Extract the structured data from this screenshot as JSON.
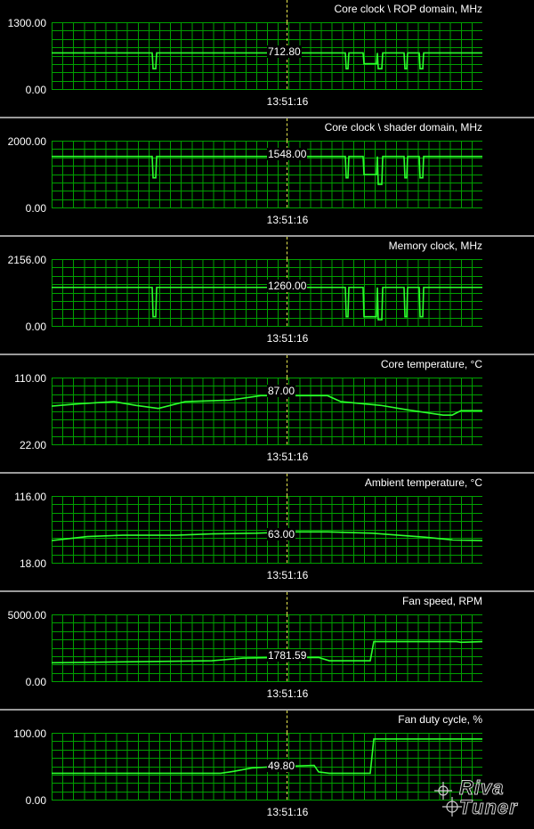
{
  "cursor_time": "13:51:16",
  "colors": {
    "background": "#000000",
    "grid": "#00a000",
    "trace": "#2cff2c",
    "cursor": "#e8e850",
    "separator": "#9a9a9a"
  },
  "watermark": {
    "line1": "Riva",
    "line2": "Tuner"
  },
  "panels": [
    {
      "id": "rop",
      "title": "Core clock \\ ROP domain, MHz",
      "y_max": "1300.00",
      "y_min": "0.00",
      "current": "712.80",
      "range": [
        0,
        1300
      ],
      "values": [
        712,
        712,
        712,
        712,
        712,
        712,
        712,
        712,
        712,
        712,
        712,
        712,
        712,
        712,
        712,
        712,
        712,
        712,
        712,
        712,
        712,
        712,
        712,
        712,
        712,
        712,
        712,
        712,
        712,
        712,
        712,
        712,
        712,
        712,
        712,
        712,
        712,
        712,
        712,
        712,
        712,
        712,
        712,
        712,
        712,
        712,
        712,
        712,
        712,
        712,
        712,
        712,
        712,
        712,
        712,
        712,
        712,
        712,
        712,
        712,
        712,
        712,
        712,
        712,
        712,
        712,
        712,
        712,
        712,
        712,
        712,
        712,
        712,
        712,
        712,
        712,
        712,
        712,
        712,
        712,
        712,
        712,
        712,
        712,
        712,
        712,
        712,
        712,
        712,
        712,
        712,
        712,
        712,
        712,
        712,
        712,
        712,
        712,
        712,
        712,
        712,
        712,
        712,
        712,
        712,
        712,
        712,
        712,
        712,
        712,
        712,
        712,
        712,
        712,
        712,
        712,
        712,
        712,
        712,
        712,
        712,
        712,
        712,
        712,
        712,
        712,
        712,
        712,
        712,
        712,
        712,
        712,
        712,
        712,
        712,
        712,
        712,
        712,
        712,
        712,
        712,
        712,
        712,
        712,
        712,
        712,
        712,
        712,
        712,
        712,
        712,
        712,
        712,
        712,
        712,
        712,
        712,
        712,
        712,
        712,
        712,
        712,
        712,
        712,
        712,
        712,
        712,
        712,
        712,
        712,
        712,
        712,
        712,
        712,
        712,
        712,
        712,
        712,
        712,
        712,
        712,
        712,
        712,
        712,
        712,
        712,
        712,
        712,
        712,
        712,
        712,
        712,
        712,
        712,
        712,
        712,
        712,
        712,
        712,
        712,
        712,
        712,
        712,
        712,
        712,
        712,
        712,
        712,
        712,
        712,
        712,
        712,
        712,
        712,
        712,
        712,
        712,
        712,
        712,
        712,
        712,
        712,
        712,
        712,
        712,
        712,
        712,
        712,
        712,
        712,
        712,
        712,
        712,
        712,
        712,
        712,
        712,
        712,
        712,
        712,
        712,
        712,
        712,
        712,
        712,
        712,
        712,
        712,
        712,
        712,
        712,
        712,
        712,
        712,
        712,
        712,
        712,
        712,
        712,
        712,
        712,
        712,
        712,
        712,
        712,
        712,
        712,
        712,
        712,
        712,
        712,
        712,
        712,
        712,
        712,
        712,
        712,
        712,
        712,
        712,
        712,
        712,
        712,
        712,
        712,
        712,
        712,
        712,
        712,
        712,
        712,
        712,
        712,
        712,
        712,
        712,
        712,
        712,
        712,
        712,
        712,
        712,
        712,
        712,
        712,
        712,
        712,
        712,
        712,
        712,
        712,
        712,
        712,
        712,
        712,
        712,
        712,
        712,
        712,
        712,
        712,
        712,
        712,
        712,
        712,
        712,
        712,
        712,
        712,
        712,
        712,
        712,
        712,
        712,
        712,
        712,
        712,
        712,
        712,
        712,
        712,
        712,
        712,
        712,
        712,
        712,
        712,
        712,
        712,
        712,
        712,
        712,
        712,
        712,
        712,
        712,
        712,
        712,
        712,
        712,
        712,
        712,
        712,
        712,
        712,
        712,
        712,
        712,
        712,
        712,
        712,
        712,
        712,
        712,
        712,
        712,
        712,
        712,
        712,
        712,
        712,
        712,
        712,
        712,
        712,
        712,
        712,
        712,
        712,
        712,
        712,
        712,
        712,
        712,
        712,
        712,
        712,
        712,
        712,
        712,
        712,
        712,
        712,
        712,
        712,
        712,
        712,
        712,
        712,
        712,
        712,
        712,
        712,
        712,
        712,
        712,
        712,
        712,
        712,
        712,
        712,
        712,
        712,
        712,
        712,
        712,
        712,
        712,
        712,
        712,
        712,
        712,
        712,
        712,
        712,
        712,
        712,
        712,
        712,
        712,
        712,
        712,
        712,
        712,
        712,
        712,
        712,
        712,
        712,
        712,
        712,
        712,
        712,
        712,
        712,
        712,
        712,
        712,
        712,
        712,
        712,
        712,
        712,
        712,
        712,
        712,
        712,
        712,
        712,
        712,
        712,
        712,
        712,
        712,
        712,
        712,
        712,
        712,
        712,
        712,
        712,
        712,
        712,
        712,
        712,
        712,
        712,
        712,
        712,
        712,
        712,
        712,
        712,
        712,
        712,
        712,
        712,
        712,
        712,
        712,
        712,
        712,
        712,
        712,
        712
      ],
      "dips": [
        [
          113,
          118,
          400
        ],
        [
          330,
          334,
          400
        ],
        [
          336,
          346,
          712
        ],
        [
          350,
          366,
          500
        ],
        [
          366,
          372,
          400
        ],
        [
          372,
          396,
          712
        ],
        [
          396,
          400,
          400
        ],
        [
          413,
          418,
          400
        ]
      ],
      "steps": [
        [
          334,
          346,
          712
        ],
        [
          346,
          350,
          712
        ]
      ],
      "base": 712,
      "high": 712,
      "trace_mode": "step"
    },
    {
      "id": "shader",
      "title": "Core clock \\ shader domain, MHz",
      "y_max": "2000.00",
      "y_min": "0.00",
      "current": "1548.00",
      "range": [
        0,
        2000
      ],
      "base": 1548,
      "trace_mode": "step",
      "dips": [
        [
          113,
          118,
          900
        ],
        [
          330,
          334,
          900
        ],
        [
          350,
          366,
          1000
        ],
        [
          366,
          372,
          700
        ],
        [
          396,
          400,
          900
        ],
        [
          413,
          418,
          900
        ]
      ]
    },
    {
      "id": "mem",
      "title": "Memory clock, MHz",
      "y_max": "2156.00",
      "y_min": "0.00",
      "current": "1260.00",
      "range": [
        0,
        2156
      ],
      "base": 1260,
      "trace_mode": "step",
      "dips": [
        [
          113,
          118,
          300
        ],
        [
          330,
          334,
          300
        ],
        [
          350,
          366,
          300
        ],
        [
          366,
          372,
          200
        ],
        [
          396,
          400,
          300
        ],
        [
          413,
          418,
          300
        ]
      ]
    },
    {
      "id": "coretemp",
      "title": "Core temperature, °C",
      "y_max": "110.00",
      "y_min": "22.00",
      "current": "87.00",
      "range": [
        22,
        110
      ],
      "trace_mode": "curve",
      "points": [
        [
          0,
          73
        ],
        [
          30,
          76
        ],
        [
          70,
          79
        ],
        [
          95,
          74
        ],
        [
          120,
          70
        ],
        [
          150,
          79
        ],
        [
          200,
          81
        ],
        [
          235,
          87
        ],
        [
          310,
          87
        ],
        [
          325,
          79
        ],
        [
          370,
          74
        ],
        [
          400,
          68
        ],
        [
          440,
          61
        ],
        [
          450,
          61
        ],
        [
          460,
          67
        ],
        [
          484,
          67
        ]
      ]
    },
    {
      "id": "ambtemp",
      "title": "Ambient temperature, °C",
      "y_max": "116.00",
      "y_min": "18.00",
      "current": "63.00",
      "range": [
        18,
        116
      ],
      "trace_mode": "curve",
      "points": [
        [
          0,
          51
        ],
        [
          40,
          57
        ],
        [
          80,
          59
        ],
        [
          140,
          59
        ],
        [
          180,
          61
        ],
        [
          230,
          62
        ],
        [
          270,
          64
        ],
        [
          310,
          64
        ],
        [
          360,
          62
        ],
        [
          420,
          56
        ],
        [
          450,
          52
        ],
        [
          484,
          51
        ]
      ]
    },
    {
      "id": "fanrpm",
      "title": "Fan speed, RPM",
      "y_max": "5000.00",
      "y_min": "0.00",
      "current": "1781.59",
      "range": [
        0,
        5000
      ],
      "trace_mode": "curve",
      "points": [
        [
          0,
          1400
        ],
        [
          60,
          1450
        ],
        [
          120,
          1500
        ],
        [
          180,
          1550
        ],
        [
          215,
          1750
        ],
        [
          240,
          1781
        ],
        [
          300,
          1800
        ],
        [
          312,
          1550
        ],
        [
          358,
          1550
        ],
        [
          362,
          3000
        ],
        [
          455,
          3000
        ],
        [
          460,
          2950
        ],
        [
          484,
          3000
        ]
      ]
    },
    {
      "id": "fanduty",
      "title": "Fan duty cycle, %",
      "y_max": "100.00",
      "y_min": "0.00",
      "current": "49.80",
      "range": [
        0,
        100
      ],
      "trace_mode": "curve",
      "points": [
        [
          0,
          40
        ],
        [
          190,
          40
        ],
        [
          205,
          43
        ],
        [
          225,
          48
        ],
        [
          250,
          50
        ],
        [
          295,
          52
        ],
        [
          300,
          42
        ],
        [
          312,
          40
        ],
        [
          358,
          40
        ],
        [
          362,
          92
        ],
        [
          484,
          92
        ]
      ]
    }
  ]
}
